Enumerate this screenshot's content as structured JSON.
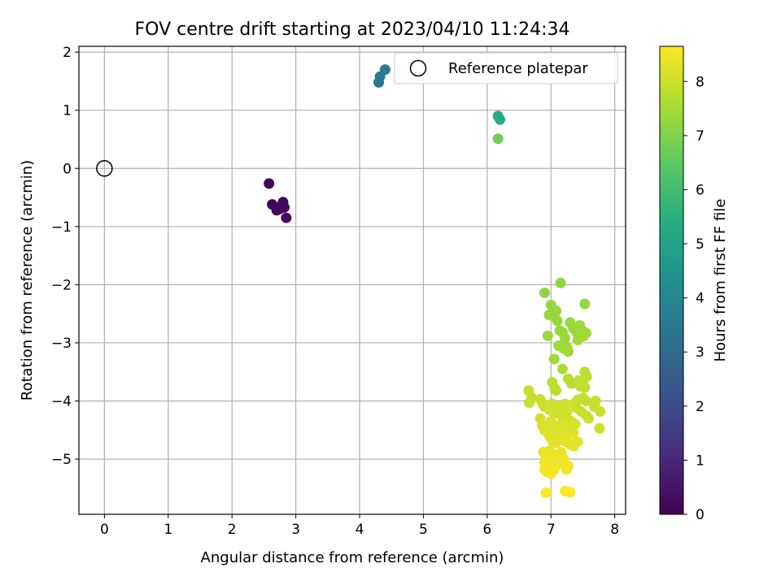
{
  "chart_data": {
    "type": "scatter",
    "title": "FOV centre drift starting at 2023/04/10 11:24:34",
    "xlabel": "Angular distance from reference (arcmin)",
    "ylabel": "Rotation from reference (arcmin)",
    "xlim": [
      -0.4,
      8.17
    ],
    "ylim": [
      -5.95,
      2.1
    ],
    "xticks": [
      0,
      1,
      2,
      3,
      4,
      5,
      6,
      7,
      8
    ],
    "yticks": [
      -5,
      -4,
      -3,
      -2,
      -1,
      0,
      1,
      2
    ],
    "grid": true,
    "legend": {
      "position": "top-right",
      "entries": [
        "Reference platepar"
      ]
    },
    "reference_point": {
      "label": "Reference platepar",
      "x": 0,
      "y": 0
    },
    "colorbar": {
      "label": "Hours from first FF file",
      "range": [
        0,
        8.65
      ],
      "ticks": [
        0,
        1,
        2,
        3,
        4,
        5,
        6,
        7,
        8
      ],
      "colormap": "viridis"
    },
    "points": [
      {
        "x": 2.58,
        "y": -0.26,
        "c": 0.1
      },
      {
        "x": 2.63,
        "y": -0.62,
        "c": 0.1
      },
      {
        "x": 2.7,
        "y": -0.72,
        "c": 0.15
      },
      {
        "x": 2.76,
        "y": -0.66,
        "c": 0.15
      },
      {
        "x": 2.8,
        "y": -0.58,
        "c": 0.2
      },
      {
        "x": 2.82,
        "y": -0.67,
        "c": 0.2
      },
      {
        "x": 2.85,
        "y": -0.85,
        "c": 0.25
      },
      {
        "x": 2.74,
        "y": -0.7,
        "c": 0.15
      },
      {
        "x": 4.3,
        "y": 1.48,
        "c": 3.5
      },
      {
        "x": 4.32,
        "y": 1.58,
        "c": 3.55
      },
      {
        "x": 4.4,
        "y": 1.7,
        "c": 3.6
      },
      {
        "x": 6.17,
        "y": 0.9,
        "c": 5.3
      },
      {
        "x": 6.2,
        "y": 0.84,
        "c": 5.4
      },
      {
        "x": 6.17,
        "y": 0.51,
        "c": 6.8
      },
      {
        "x": 6.9,
        "y": -2.14,
        "c": 7.2
      },
      {
        "x": 7.15,
        "y": -1.97,
        "c": 7.2
      },
      {
        "x": 7.53,
        "y": -2.33,
        "c": 7.25
      },
      {
        "x": 7.0,
        "y": -2.35,
        "c": 7.25
      },
      {
        "x": 6.97,
        "y": -2.52,
        "c": 7.3
      },
      {
        "x": 7.05,
        "y": -2.55,
        "c": 7.3
      },
      {
        "x": 7.08,
        "y": -2.45,
        "c": 7.3
      },
      {
        "x": 7.1,
        "y": -2.62,
        "c": 7.3
      },
      {
        "x": 6.95,
        "y": -2.88,
        "c": 7.35
      },
      {
        "x": 7.14,
        "y": -2.79,
        "c": 7.35
      },
      {
        "x": 7.18,
        "y": -2.82,
        "c": 7.35
      },
      {
        "x": 7.22,
        "y": -2.92,
        "c": 7.35
      },
      {
        "x": 7.12,
        "y": -3.05,
        "c": 7.4
      },
      {
        "x": 7.2,
        "y": -3.1,
        "c": 7.4
      },
      {
        "x": 7.25,
        "y": -3.08,
        "c": 7.4
      },
      {
        "x": 7.27,
        "y": -3.15,
        "c": 7.4
      },
      {
        "x": 7.05,
        "y": -3.28,
        "c": 7.45
      },
      {
        "x": 7.3,
        "y": -2.65,
        "c": 7.35
      },
      {
        "x": 7.35,
        "y": -2.75,
        "c": 7.35
      },
      {
        "x": 7.4,
        "y": -2.82,
        "c": 7.4
      },
      {
        "x": 7.45,
        "y": -2.7,
        "c": 7.4
      },
      {
        "x": 7.5,
        "y": -2.8,
        "c": 7.4
      },
      {
        "x": 7.52,
        "y": -2.88,
        "c": 7.4
      },
      {
        "x": 7.55,
        "y": -2.83,
        "c": 7.4
      },
      {
        "x": 7.42,
        "y": -2.95,
        "c": 7.45
      },
      {
        "x": 7.47,
        "y": -2.9,
        "c": 7.45
      },
      {
        "x": 7.18,
        "y": -3.45,
        "c": 7.6
      },
      {
        "x": 7.27,
        "y": -3.62,
        "c": 7.7
      },
      {
        "x": 7.32,
        "y": -3.7,
        "c": 7.7
      },
      {
        "x": 7.02,
        "y": -3.68,
        "c": 7.75
      },
      {
        "x": 7.06,
        "y": -3.78,
        "c": 7.75
      },
      {
        "x": 7.08,
        "y": -3.82,
        "c": 7.8
      },
      {
        "x": 6.65,
        "y": -3.82,
        "c": 7.9
      },
      {
        "x": 6.7,
        "y": -3.95,
        "c": 7.9
      },
      {
        "x": 6.66,
        "y": -4.03,
        "c": 7.95
      },
      {
        "x": 6.83,
        "y": -3.97,
        "c": 7.95
      },
      {
        "x": 6.87,
        "y": -4.05,
        "c": 8.0
      },
      {
        "x": 6.9,
        "y": -4.1,
        "c": 8.0
      },
      {
        "x": 7.53,
        "y": -3.5,
        "c": 7.8
      },
      {
        "x": 7.56,
        "y": -3.58,
        "c": 7.8
      },
      {
        "x": 7.5,
        "y": -3.68,
        "c": 7.85
      },
      {
        "x": 7.43,
        "y": -3.65,
        "c": 7.85
      },
      {
        "x": 7.53,
        "y": -3.77,
        "c": 7.85
      },
      {
        "x": 7.46,
        "y": -3.75,
        "c": 7.85
      },
      {
        "x": 7.5,
        "y": -3.95,
        "c": 7.9
      },
      {
        "x": 7.55,
        "y": -4.0,
        "c": 7.9
      },
      {
        "x": 7.42,
        "y": -3.98,
        "c": 7.9
      },
      {
        "x": 7.36,
        "y": -4.05,
        "c": 7.95
      },
      {
        "x": 7.4,
        "y": -4.12,
        "c": 7.95
      },
      {
        "x": 7.47,
        "y": -4.18,
        "c": 7.95
      },
      {
        "x": 7.7,
        "y": -4.0,
        "c": 7.9
      },
      {
        "x": 7.68,
        "y": -4.1,
        "c": 7.9
      },
      {
        "x": 7.77,
        "y": -4.18,
        "c": 7.95
      },
      {
        "x": 7.55,
        "y": -4.25,
        "c": 8.0
      },
      {
        "x": 7.59,
        "y": -4.3,
        "c": 8.0
      },
      {
        "x": 7.76,
        "y": -4.47,
        "c": 8.0
      },
      {
        "x": 6.97,
        "y": -4.15,
        "c": 8.05
      },
      {
        "x": 7.02,
        "y": -4.05,
        "c": 8.05
      },
      {
        "x": 7.05,
        "y": -4.22,
        "c": 8.1
      },
      {
        "x": 7.12,
        "y": -4.1,
        "c": 8.1
      },
      {
        "x": 7.15,
        "y": -4.18,
        "c": 8.1
      },
      {
        "x": 7.18,
        "y": -4.28,
        "c": 8.1
      },
      {
        "x": 7.22,
        "y": -4.05,
        "c": 8.05
      },
      {
        "x": 7.25,
        "y": -4.2,
        "c": 8.1
      },
      {
        "x": 7.28,
        "y": -4.12,
        "c": 8.1
      },
      {
        "x": 6.83,
        "y": -4.3,
        "c": 8.1
      },
      {
        "x": 6.86,
        "y": -4.42,
        "c": 8.15
      },
      {
        "x": 6.9,
        "y": -4.5,
        "c": 8.15
      },
      {
        "x": 7.0,
        "y": -4.35,
        "c": 8.15
      },
      {
        "x": 7.05,
        "y": -4.45,
        "c": 8.2
      },
      {
        "x": 7.1,
        "y": -4.55,
        "c": 8.2
      },
      {
        "x": 7.15,
        "y": -4.4,
        "c": 8.2
      },
      {
        "x": 7.2,
        "y": -4.5,
        "c": 8.2
      },
      {
        "x": 7.28,
        "y": -4.45,
        "c": 8.2
      },
      {
        "x": 7.32,
        "y": -4.35,
        "c": 8.15
      },
      {
        "x": 7.38,
        "y": -4.4,
        "c": 8.15
      },
      {
        "x": 7.35,
        "y": -4.55,
        "c": 8.2
      },
      {
        "x": 6.97,
        "y": -4.6,
        "c": 8.25
      },
      {
        "x": 7.02,
        "y": -4.68,
        "c": 8.25
      },
      {
        "x": 7.08,
        "y": -4.72,
        "c": 8.3
      },
      {
        "x": 7.14,
        "y": -4.65,
        "c": 8.3
      },
      {
        "x": 7.22,
        "y": -4.7,
        "c": 8.3
      },
      {
        "x": 7.26,
        "y": -4.62,
        "c": 8.3
      },
      {
        "x": 7.3,
        "y": -4.75,
        "c": 8.3
      },
      {
        "x": 7.36,
        "y": -4.78,
        "c": 8.35
      },
      {
        "x": 7.42,
        "y": -4.7,
        "c": 8.3
      },
      {
        "x": 6.88,
        "y": -4.88,
        "c": 8.35
      },
      {
        "x": 6.92,
        "y": -4.95,
        "c": 8.4
      },
      {
        "x": 6.98,
        "y": -4.85,
        "c": 8.4
      },
      {
        "x": 7.04,
        "y": -4.92,
        "c": 8.4
      },
      {
        "x": 7.1,
        "y": -4.98,
        "c": 8.45
      },
      {
        "x": 7.16,
        "y": -4.88,
        "c": 8.4
      },
      {
        "x": 6.9,
        "y": -5.05,
        "c": 8.45
      },
      {
        "x": 6.96,
        "y": -5.1,
        "c": 8.5
      },
      {
        "x": 7.02,
        "y": -5.02,
        "c": 8.45
      },
      {
        "x": 7.08,
        "y": -5.12,
        "c": 8.5
      },
      {
        "x": 7.14,
        "y": -5.06,
        "c": 8.5
      },
      {
        "x": 7.2,
        "y": -5.0,
        "c": 8.45
      },
      {
        "x": 6.9,
        "y": -5.18,
        "c": 8.55
      },
      {
        "x": 6.94,
        "y": -5.22,
        "c": 8.55
      },
      {
        "x": 7.0,
        "y": -5.25,
        "c": 8.55
      },
      {
        "x": 7.05,
        "y": -5.18,
        "c": 8.55
      },
      {
        "x": 7.24,
        "y": -5.18,
        "c": 8.55
      },
      {
        "x": 7.27,
        "y": -5.12,
        "c": 8.5
      },
      {
        "x": 6.92,
        "y": -5.58,
        "c": 8.65
      },
      {
        "x": 7.22,
        "y": -5.55,
        "c": 8.6
      },
      {
        "x": 7.3,
        "y": -5.57,
        "c": 8.65
      }
    ]
  }
}
